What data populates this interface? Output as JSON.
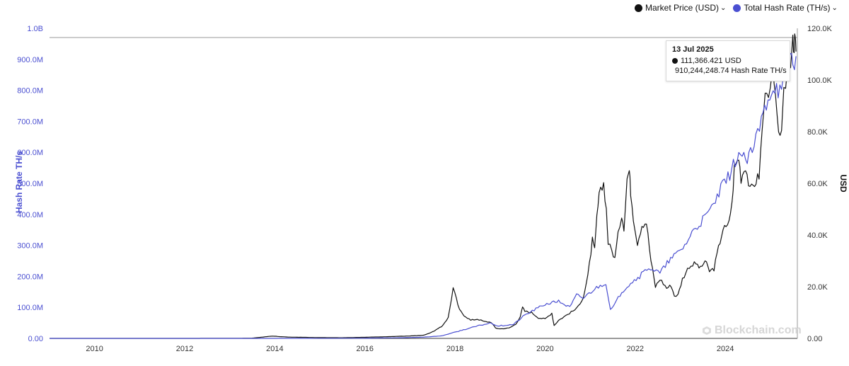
{
  "legend": {
    "items": [
      {
        "label": "Market Price (USD)",
        "color": "#111111"
      },
      {
        "label": "Total Hash Rate (TH/s)",
        "color": "#4a4fd1"
      }
    ]
  },
  "tooltip": {
    "date": "13 Jul 2025",
    "price": "111,366.421 USD",
    "hash": "910,244,248.74 Hash Rate TH/s"
  },
  "watermark": "Blockchain.com",
  "chart_data": {
    "type": "line",
    "x_tick_labels": [
      "2010",
      "2012",
      "2014",
      "2016",
      "2018",
      "2020",
      "2022",
      "2024"
    ],
    "x_range": [
      2009.0,
      2025.6
    ],
    "left_axis": {
      "label": "Hash Rate TH/s",
      "ticks": [
        "0.00",
        "100.0M",
        "200.0M",
        "300.0M",
        "400.0M",
        "500.0M",
        "600.0M",
        "700.0M",
        "800.0M",
        "900.0M",
        "1.0B"
      ],
      "range": [
        0,
        1000000000
      ]
    },
    "right_axis": {
      "label": "USD",
      "ticks": [
        "0.00",
        "20.0K",
        "40.0K",
        "60.0K",
        "80.0K",
        "100.0K",
        "120.0K"
      ],
      "range": [
        0,
        120000
      ]
    },
    "grid": false,
    "legend_position": "top-right",
    "series": [
      {
        "name": "Market Price (USD)",
        "axis": "right",
        "color": "#111111",
        "points": [
          [
            2009.0,
            0
          ],
          [
            2010.5,
            0
          ],
          [
            2012.0,
            10
          ],
          [
            2013.0,
            20
          ],
          [
            2013.5,
            100
          ],
          [
            2013.95,
            900
          ],
          [
            2014.3,
            500
          ],
          [
            2015.0,
            300
          ],
          [
            2015.5,
            250
          ],
          [
            2016.0,
            430
          ],
          [
            2016.5,
            650
          ],
          [
            2017.0,
            950
          ],
          [
            2017.3,
            1200
          ],
          [
            2017.5,
            2500
          ],
          [
            2017.7,
            4500
          ],
          [
            2017.85,
            8000
          ],
          [
            2017.96,
            19500
          ],
          [
            2018.1,
            11000
          ],
          [
            2018.2,
            9000
          ],
          [
            2018.35,
            7000
          ],
          [
            2018.5,
            7500
          ],
          [
            2018.65,
            6500
          ],
          [
            2018.8,
            6300
          ],
          [
            2018.9,
            4000
          ],
          [
            2019.0,
            3700
          ],
          [
            2019.2,
            4000
          ],
          [
            2019.35,
            5500
          ],
          [
            2019.45,
            8500
          ],
          [
            2019.5,
            12000
          ],
          [
            2019.55,
            10500
          ],
          [
            2019.7,
            10000
          ],
          [
            2019.85,
            8000
          ],
          [
            2020.0,
            7500
          ],
          [
            2020.15,
            9800
          ],
          [
            2020.2,
            5000
          ],
          [
            2020.3,
            7000
          ],
          [
            2020.5,
            9300
          ],
          [
            2020.7,
            11500
          ],
          [
            2020.85,
            16000
          ],
          [
            2020.95,
            24000
          ],
          [
            2021.05,
            38000
          ],
          [
            2021.1,
            34000
          ],
          [
            2021.15,
            47000
          ],
          [
            2021.2,
            55000
          ],
          [
            2021.3,
            60000
          ],
          [
            2021.36,
            50000
          ],
          [
            2021.4,
            37000
          ],
          [
            2021.48,
            34000
          ],
          [
            2021.55,
            31000
          ],
          [
            2021.62,
            40000
          ],
          [
            2021.7,
            48000
          ],
          [
            2021.75,
            43000
          ],
          [
            2021.82,
            62000
          ],
          [
            2021.87,
            65000
          ],
          [
            2021.9,
            57000
          ],
          [
            2021.96,
            47000
          ],
          [
            2022.05,
            37000
          ],
          [
            2022.15,
            44000
          ],
          [
            2022.25,
            45000
          ],
          [
            2022.35,
            30000
          ],
          [
            2022.45,
            20000
          ],
          [
            2022.55,
            23000
          ],
          [
            2022.7,
            19500
          ],
          [
            2022.8,
            20500
          ],
          [
            2022.87,
            16500
          ],
          [
            2022.95,
            16800
          ],
          [
            2023.05,
            23000
          ],
          [
            2023.2,
            28000
          ],
          [
            2023.35,
            29000
          ],
          [
            2023.45,
            27000
          ],
          [
            2023.55,
            30000
          ],
          [
            2023.65,
            26000
          ],
          [
            2023.75,
            27000
          ],
          [
            2023.85,
            35000
          ],
          [
            2023.95,
            42500
          ],
          [
            2024.05,
            43000
          ],
          [
            2024.15,
            52000
          ],
          [
            2024.2,
            66000
          ],
          [
            2024.3,
            70000
          ],
          [
            2024.35,
            62000
          ],
          [
            2024.45,
            67000
          ],
          [
            2024.55,
            57000
          ],
          [
            2024.65,
            60000
          ],
          [
            2024.75,
            63000
          ],
          [
            2024.85,
            88000
          ],
          [
            2024.92,
            98000
          ],
          [
            2025.0,
            94000
          ],
          [
            2025.05,
            105000
          ],
          [
            2025.15,
            84000
          ],
          [
            2025.25,
            78000
          ],
          [
            2025.3,
            94000
          ],
          [
            2025.38,
            104000
          ],
          [
            2025.45,
            108000
          ],
          [
            2025.5,
            118000
          ],
          [
            2025.53,
            111000
          ],
          [
            2025.55,
            117000
          ],
          [
            2025.57,
            111000
          ]
        ]
      },
      {
        "name": "Total Hash Rate (TH/s)",
        "axis": "left",
        "color": "#4a4fd1",
        "points": [
          [
            2009.0,
            0
          ],
          [
            2013.0,
            0
          ],
          [
            2014.0,
            100000
          ],
          [
            2015.0,
            400000
          ],
          [
            2016.0,
            800000
          ],
          [
            2016.8,
            2000000
          ],
          [
            2017.3,
            4000000
          ],
          [
            2017.7,
            8000000
          ],
          [
            2018.0,
            20000000
          ],
          [
            2018.5,
            40000000
          ],
          [
            2018.8,
            50000000
          ],
          [
            2018.95,
            40000000
          ],
          [
            2019.3,
            45000000
          ],
          [
            2019.55,
            75000000
          ],
          [
            2019.8,
            95000000
          ],
          [
            2020.0,
            110000000
          ],
          [
            2020.3,
            120000000
          ],
          [
            2020.55,
            100000000
          ],
          [
            2020.7,
            140000000
          ],
          [
            2020.85,
            130000000
          ],
          [
            2021.1,
            160000000
          ],
          [
            2021.35,
            180000000
          ],
          [
            2021.45,
            90000000
          ],
          [
            2021.55,
            110000000
          ],
          [
            2021.7,
            150000000
          ],
          [
            2021.9,
            180000000
          ],
          [
            2022.1,
            200000000
          ],
          [
            2022.3,
            230000000
          ],
          [
            2022.55,
            210000000
          ],
          [
            2022.75,
            250000000
          ],
          [
            2022.9,
            270000000
          ],
          [
            2023.1,
            300000000
          ],
          [
            2023.3,
            350000000
          ],
          [
            2023.5,
            380000000
          ],
          [
            2023.7,
            420000000
          ],
          [
            2023.9,
            480000000
          ],
          [
            2024.1,
            530000000
          ],
          [
            2024.3,
            600000000
          ],
          [
            2024.45,
            570000000
          ],
          [
            2024.6,
            600000000
          ],
          [
            2024.8,
            700000000
          ],
          [
            2024.95,
            780000000
          ],
          [
            2025.1,
            820000000
          ],
          [
            2025.25,
            790000000
          ],
          [
            2025.35,
            860000000
          ],
          [
            2025.45,
            920000000
          ],
          [
            2025.5,
            890000000
          ],
          [
            2025.57,
            910000000
          ]
        ]
      }
    ]
  }
}
